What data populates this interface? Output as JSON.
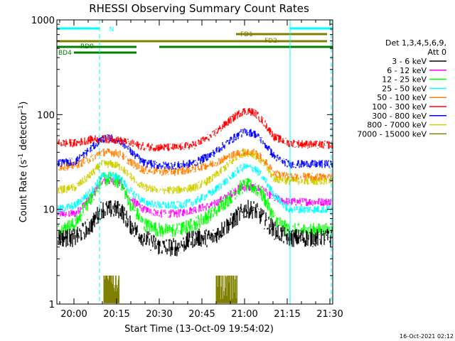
{
  "chart_data": {
    "type": "line",
    "title": "RHESSI Observing Summary Count Rates",
    "xlabel": "Start Time (13-Oct-09 19:54:02)",
    "ylabel": "Count Rate (s⁻¹ detector⁻¹)",
    "ylabel_main": "Count Rate (s",
    "ylabel_sup1": "-1",
    "ylabel_mid": " detector",
    "ylabel_sup2": "-1",
    "ylabel_end": ")",
    "yscale": "log",
    "ylim": [
      1,
      1000
    ],
    "xlim_min": [
      0,
      97
    ],
    "x_ticks": [
      {
        "label": "20:00",
        "min": 6
      },
      {
        "label": "20:15",
        "min": 21
      },
      {
        "label": "20:30",
        "min": 36
      },
      {
        "label": "20:45",
        "min": 51
      },
      {
        "label": "21:00",
        "min": 66
      },
      {
        "label": "21:15",
        "min": 81
      },
      {
        "label": "21:30",
        "min": 96
      }
    ],
    "y_ticks": [
      {
        "label": "1",
        "value": 1
      },
      {
        "label": "10",
        "value": 10
      },
      {
        "label": "100",
        "value": 100
      },
      {
        "label": "1000",
        "value": 1000
      }
    ],
    "legend_header": [
      "Det 1,3,4,5,6,9,",
      "Att 0"
    ],
    "series": [
      {
        "name": "3 - 6 keV",
        "color": "#000000",
        "values": [
          [
            0,
            5
          ],
          [
            6,
            5
          ],
          [
            12,
            7
          ],
          [
            15,
            10
          ],
          [
            17,
            10
          ],
          [
            19,
            10
          ],
          [
            22,
            10
          ],
          [
            25,
            7
          ],
          [
            30,
            5
          ],
          [
            36,
            4
          ],
          [
            42,
            4
          ],
          [
            48,
            5
          ],
          [
            54,
            5
          ],
          [
            60,
            7
          ],
          [
            64,
            9
          ],
          [
            66,
            10
          ],
          [
            69,
            10
          ],
          [
            72,
            8
          ],
          [
            76,
            6
          ],
          [
            81,
            5
          ],
          [
            90,
            5
          ],
          [
            96,
            5
          ]
        ]
      },
      {
        "name": "6 - 12 keV",
        "color": "#ff00ff",
        "values": [
          [
            0,
            9
          ],
          [
            6,
            9
          ],
          [
            12,
            14
          ],
          [
            15,
            20
          ],
          [
            17,
            20
          ],
          [
            19,
            20
          ],
          [
            22,
            19
          ],
          [
            25,
            13
          ],
          [
            30,
            10
          ],
          [
            36,
            9
          ],
          [
            42,
            9
          ],
          [
            48,
            10
          ],
          [
            54,
            11
          ],
          [
            60,
            14
          ],
          [
            64,
            17
          ],
          [
            66,
            17
          ],
          [
            69,
            17
          ],
          [
            72,
            16
          ],
          [
            76,
            13
          ],
          [
            81,
            12
          ],
          [
            90,
            12
          ],
          [
            96,
            12
          ]
        ]
      },
      {
        "name": "12 - 25 keV",
        "color": "#00ff00",
        "values": [
          [
            0,
            6
          ],
          [
            6,
            7
          ],
          [
            12,
            14
          ],
          [
            15,
            20
          ],
          [
            17,
            21
          ],
          [
            19,
            21
          ],
          [
            22,
            19
          ],
          [
            25,
            12
          ],
          [
            30,
            7
          ],
          [
            36,
            6
          ],
          [
            42,
            6
          ],
          [
            48,
            7
          ],
          [
            54,
            9
          ],
          [
            60,
            13
          ],
          [
            64,
            17
          ],
          [
            66,
            18
          ],
          [
            69,
            17
          ],
          [
            72,
            14
          ],
          [
            76,
            8
          ],
          [
            81,
            6
          ],
          [
            90,
            6
          ],
          [
            96,
            6
          ]
        ]
      },
      {
        "name": "25 - 50 keV",
        "color": "#00ffff",
        "values": [
          [
            0,
            10
          ],
          [
            6,
            11
          ],
          [
            12,
            16
          ],
          [
            15,
            22
          ],
          [
            17,
            23
          ],
          [
            19,
            23
          ],
          [
            22,
            21
          ],
          [
            25,
            16
          ],
          [
            30,
            12
          ],
          [
            36,
            11
          ],
          [
            42,
            11
          ],
          [
            48,
            12
          ],
          [
            54,
            15
          ],
          [
            60,
            21
          ],
          [
            64,
            27
          ],
          [
            66,
            28
          ],
          [
            69,
            27
          ],
          [
            72,
            22
          ],
          [
            76,
            14
          ],
          [
            81,
            10
          ],
          [
            90,
            10
          ],
          [
            96,
            10
          ]
        ]
      },
      {
        "name": "50 - 100 keV",
        "color": "#ff8000",
        "values": [
          [
            0,
            28
          ],
          [
            6,
            29
          ],
          [
            12,
            35
          ],
          [
            15,
            40
          ],
          [
            17,
            40
          ],
          [
            19,
            40
          ],
          [
            22,
            38
          ],
          [
            25,
            32
          ],
          [
            30,
            26
          ],
          [
            36,
            25
          ],
          [
            42,
            25
          ],
          [
            48,
            27
          ],
          [
            54,
            30
          ],
          [
            60,
            36
          ],
          [
            64,
            40
          ],
          [
            66,
            40
          ],
          [
            69,
            40
          ],
          [
            72,
            34
          ],
          [
            76,
            24
          ],
          [
            81,
            22
          ],
          [
            90,
            22
          ],
          [
            96,
            22
          ]
        ]
      },
      {
        "name": "100 - 300 keV",
        "color": "#ff0000",
        "values": [
          [
            0,
            50
          ],
          [
            6,
            50
          ],
          [
            12,
            55
          ],
          [
            15,
            55
          ],
          [
            17,
            55
          ],
          [
            19,
            55
          ],
          [
            22,
            53
          ],
          [
            25,
            50
          ],
          [
            30,
            46
          ],
          [
            36,
            45
          ],
          [
            42,
            45
          ],
          [
            48,
            48
          ],
          [
            54,
            60
          ],
          [
            60,
            85
          ],
          [
            64,
            105
          ],
          [
            66,
            110
          ],
          [
            69,
            105
          ],
          [
            72,
            85
          ],
          [
            76,
            58
          ],
          [
            81,
            50
          ],
          [
            90,
            48
          ],
          [
            96,
            48
          ]
        ]
      },
      {
        "name": "300 - 800 keV",
        "color": "#0000ff",
        "values": [
          [
            0,
            31
          ],
          [
            6,
            32
          ],
          [
            12,
            45
          ],
          [
            15,
            55
          ],
          [
            17,
            56
          ],
          [
            19,
            56
          ],
          [
            22,
            52
          ],
          [
            25,
            42
          ],
          [
            30,
            31
          ],
          [
            36,
            29
          ],
          [
            42,
            29
          ],
          [
            48,
            31
          ],
          [
            54,
            38
          ],
          [
            60,
            52
          ],
          [
            64,
            63
          ],
          [
            66,
            66
          ],
          [
            69,
            63
          ],
          [
            72,
            52
          ],
          [
            76,
            36
          ],
          [
            81,
            30
          ],
          [
            90,
            30
          ],
          [
            96,
            30
          ]
        ]
      },
      {
        "name": "800 - 7000 keV",
        "color": "#d0d000",
        "values": [
          [
            0,
            16
          ],
          [
            6,
            17
          ],
          [
            12,
            24
          ],
          [
            15,
            30
          ],
          [
            17,
            30
          ],
          [
            19,
            30
          ],
          [
            22,
            28
          ],
          [
            25,
            23
          ],
          [
            30,
            17
          ],
          [
            36,
            16
          ],
          [
            42,
            16
          ],
          [
            48,
            17
          ],
          [
            54,
            21
          ],
          [
            60,
            30
          ],
          [
            64,
            38
          ],
          [
            66,
            40
          ],
          [
            69,
            38
          ],
          [
            72,
            31
          ],
          [
            76,
            21
          ],
          [
            81,
            20
          ],
          [
            90,
            20
          ],
          [
            96,
            20
          ]
        ]
      },
      {
        "name": "7000 - 15000 keV",
        "color": "#808000",
        "values": []
      }
    ],
    "attenuator_bursts_min": [
      [
        16.5,
        22
      ],
      [
        56,
        63.5
      ]
    ],
    "annotations": [
      {
        "label": "N",
        "color": "#00ffff",
        "row": 0,
        "segments": [
          [
            0,
            15
          ],
          [
            82,
            97
          ]
        ]
      },
      {
        "label": "FD1",
        "color": "#808000",
        "row": 1,
        "segments": [
          [
            63,
            95
          ]
        ]
      },
      {
        "label": "FD2",
        "color": "#808000",
        "row": 2,
        "segments": [
          [
            0,
            95
          ]
        ]
      },
      {
        "label": "RD0",
        "color": "#008000",
        "row": 3,
        "segments": [
          [
            0,
            28
          ],
          [
            36,
            97
          ]
        ]
      },
      {
        "label": "BD4",
        "color": "#008000",
        "row": 4,
        "segments": [
          [
            6,
            28
          ]
        ]
      }
    ],
    "vlines": [
      {
        "min": 15,
        "style": "dashed",
        "color": "#00ffff"
      },
      {
        "min": 82,
        "style": "solid",
        "color": "#00ffff"
      },
      {
        "min": 96.5,
        "style": "dashed",
        "color": "#00ffff"
      }
    ]
  },
  "footer": {
    "timestamp": "16-Oct-2021 02:12"
  }
}
